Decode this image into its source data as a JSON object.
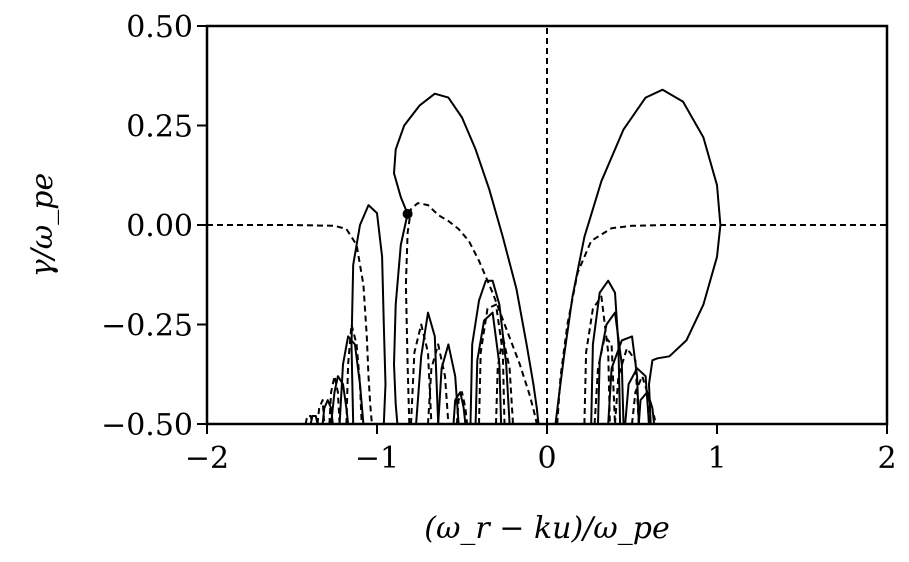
{
  "chart_data": {
    "type": "line",
    "title": "",
    "xlabel": "(ω_r − ku)/ω_pe",
    "ylabel": "γ/ω_pe",
    "xlim": [
      -2,
      2
    ],
    "ylim": [
      -0.5,
      0.5
    ],
    "xticks": [
      -2,
      -1,
      0,
      1,
      2
    ],
    "xtick_labels": [
      "−2",
      "−1",
      "0",
      "1",
      "2"
    ],
    "yticks": [
      0.5,
      0.25,
      0.0,
      -0.25,
      -0.5
    ],
    "ytick_labels": [
      "0.50",
      "0.25",
      "0.00",
      "−0.25",
      "−0.50"
    ],
    "grid": false,
    "legend": "none",
    "marker_point": {
      "x": -0.82,
      "y": 0.028
    },
    "series": [
      {
        "style": "solid",
        "color": "#000000",
        "segments": [
          {
            "x": [
              -0.82,
              -0.86,
              -0.9,
              -0.89,
              -0.84,
              -0.75,
              -0.66,
              -0.58,
              -0.5,
              -0.42,
              -0.34,
              -0.26,
              -0.18,
              -0.12,
              -0.08,
              -0.06,
              -0.05
            ],
            "y": [
              0.028,
              0.07,
              0.13,
              0.19,
              0.25,
              0.3,
              0.33,
              0.32,
              0.27,
              0.19,
              0.09,
              -0.03,
              -0.16,
              -0.3,
              -0.4,
              -0.46,
              -0.5
            ]
          },
          {
            "x": [
              0.05,
              0.07,
              0.1,
              0.15,
              0.22,
              0.32,
              0.45,
              0.58,
              0.68,
              0.8,
              0.92,
              1.0,
              1.02,
              1.0,
              0.92,
              0.82,
              0.72,
              0.65,
              0.62,
              0.6,
              0.61
            ],
            "y": [
              -0.5,
              -0.43,
              -0.33,
              -0.18,
              -0.03,
              0.11,
              0.24,
              0.32,
              0.34,
              0.31,
              0.22,
              0.1,
              0.0,
              -0.08,
              -0.2,
              -0.29,
              -0.33,
              -0.335,
              -0.34,
              -0.4,
              -0.5
            ]
          },
          {
            "x": [
              -0.82,
              -0.86,
              -0.89,
              -0.9,
              -0.89,
              -0.88
            ],
            "y": [
              0.028,
              -0.05,
              -0.2,
              -0.35,
              -0.45,
              -0.5
            ]
          },
          {
            "x": [
              -1.14,
              -1.15,
              -1.14,
              -1.1,
              -1.05,
              -1.0,
              -0.97,
              -0.96,
              -0.95,
              -0.96
            ],
            "y": [
              -0.5,
              -0.3,
              -0.1,
              0.0,
              0.05,
              0.03,
              -0.08,
              -0.25,
              -0.4,
              -0.5
            ]
          },
          {
            "x": [
              -1.22,
              -1.2,
              -1.17,
              -1.13,
              -1.1,
              -1.08
            ],
            "y": [
              -0.5,
              -0.35,
              -0.28,
              -0.3,
              -0.4,
              -0.5
            ]
          },
          {
            "x": [
              -1.27,
              -1.25,
              -1.23,
              -1.2,
              -1.18,
              -1.17
            ],
            "y": [
              -0.5,
              -0.42,
              -0.38,
              -0.4,
              -0.46,
              -0.5
            ]
          },
          {
            "x": [
              -1.32,
              -1.31,
              -1.29,
              -1.27,
              -1.26
            ],
            "y": [
              -0.5,
              -0.46,
              -0.44,
              -0.46,
              -0.5
            ]
          },
          {
            "x": [
              -1.39,
              -1.38,
              -1.36,
              -1.35
            ],
            "y": [
              -0.5,
              -0.48,
              -0.48,
              -0.5
            ]
          },
          {
            "x": [
              -0.77,
              -0.74,
              -0.7,
              -0.66,
              -0.64
            ],
            "y": [
              -0.5,
              -0.33,
              -0.22,
              -0.28,
              -0.5
            ]
          },
          {
            "x": [
              -0.64,
              -0.62,
              -0.58,
              -0.54,
              -0.52
            ],
            "y": [
              -0.5,
              -0.36,
              -0.3,
              -0.38,
              -0.5
            ]
          },
          {
            "x": [
              -0.55,
              -0.54,
              -0.51,
              -0.49,
              -0.48
            ],
            "y": [
              -0.5,
              -0.44,
              -0.42,
              -0.46,
              -0.5
            ]
          },
          {
            "x": [
              -0.45,
              -0.44,
              -0.4,
              -0.36,
              -0.32,
              -0.28,
              -0.24,
              -0.22
            ],
            "y": [
              -0.5,
              -0.3,
              -0.19,
              -0.14,
              -0.14,
              -0.2,
              -0.35,
              -0.5
            ]
          },
          {
            "x": [
              -0.42,
              -0.41,
              -0.37,
              -0.32,
              -0.28,
              -0.27
            ],
            "y": [
              -0.5,
              -0.34,
              -0.24,
              -0.22,
              -0.35,
              -0.5
            ]
          },
          {
            "x": [
              0.26,
              0.27,
              0.31,
              0.36,
              0.4,
              0.42,
              0.43
            ],
            "y": [
              -0.5,
              -0.3,
              -0.17,
              -0.14,
              -0.17,
              -0.3,
              -0.5
            ]
          },
          {
            "x": [
              0.3,
              0.31,
              0.35,
              0.4,
              0.44,
              0.45
            ],
            "y": [
              -0.5,
              -0.34,
              -0.25,
              -0.22,
              -0.35,
              -0.5
            ]
          },
          {
            "x": [
              0.36,
              0.38,
              0.44,
              0.5,
              0.53,
              0.54
            ],
            "y": [
              -0.5,
              -0.36,
              -0.29,
              -0.28,
              -0.38,
              -0.5
            ]
          },
          {
            "x": [
              0.46,
              0.48,
              0.53,
              0.58,
              0.6
            ],
            "y": [
              -0.5,
              -0.4,
              -0.36,
              -0.38,
              -0.5
            ]
          },
          {
            "x": [
              0.54,
              0.55,
              0.59,
              0.62,
              0.63
            ],
            "y": [
              -0.5,
              -0.44,
              -0.42,
              -0.46,
              -0.5
            ]
          }
        ]
      },
      {
        "style": "dashed",
        "color": "#000000",
        "segments": [
          {
            "x": [
              -2.0,
              -1.5,
              -1.25,
              -1.18,
              -1.12,
              -1.08,
              -1.06,
              -1.05,
              -1.04,
              -1.03
            ],
            "y": [
              0.0,
              0.0,
              -0.002,
              -0.01,
              -0.05,
              -0.15,
              -0.28,
              -0.38,
              -0.45,
              -0.5
            ]
          },
          {
            "x": [
              0.06,
              0.08,
              0.12,
              0.18,
              0.26,
              0.38,
              0.5,
              0.7,
              1.0,
              1.5,
              2.0
            ],
            "y": [
              -0.5,
              -0.38,
              -0.25,
              -0.12,
              -0.04,
              -0.008,
              -0.002,
              0.0,
              0.0,
              0.0,
              0.0
            ]
          },
          {
            "x": [
              -0.81,
              -0.82,
              -0.83,
              -0.82,
              -0.8,
              -0.76,
              -0.7,
              -0.64,
              -0.58,
              -0.52,
              -0.46,
              -0.4,
              -0.32,
              -0.24,
              -0.16,
              -0.1,
              -0.07,
              -0.06
            ],
            "y": [
              -0.5,
              -0.35,
              -0.15,
              -0.02,
              0.04,
              0.055,
              0.05,
              0.025,
              0.01,
              -0.01,
              -0.04,
              -0.09,
              -0.17,
              -0.26,
              -0.35,
              -0.43,
              -0.48,
              -0.5
            ]
          },
          {
            "x": [
              -1.18,
              -1.17,
              -1.15,
              -1.12,
              -1.1,
              -1.09
            ],
            "y": [
              -0.5,
              -0.35,
              -0.25,
              -0.3,
              -0.4,
              -0.5
            ]
          },
          {
            "x": [
              -1.28,
              -1.27,
              -1.25,
              -1.23,
              -1.22
            ],
            "y": [
              -0.5,
              -0.42,
              -0.38,
              -0.42,
              -0.5
            ]
          },
          {
            "x": [
              -1.35,
              -1.34,
              -1.32,
              -1.31
            ],
            "y": [
              -0.5,
              -0.46,
              -0.44,
              -0.5
            ]
          },
          {
            "x": [
              -1.42,
              -1.41,
              -1.39,
              -1.38
            ],
            "y": [
              -0.5,
              -0.48,
              -0.48,
              -0.5
            ]
          },
          {
            "x": [
              -0.8,
              -0.78,
              -0.74,
              -0.7,
              -0.68
            ],
            "y": [
              -0.5,
              -0.32,
              -0.25,
              -0.32,
              -0.5
            ]
          },
          {
            "x": [
              -0.7,
              -0.68,
              -0.64,
              -0.6,
              -0.58
            ],
            "y": [
              -0.5,
              -0.36,
              -0.3,
              -0.38,
              -0.5
            ]
          },
          {
            "x": [
              -0.53,
              -0.52,
              -0.5,
              -0.48,
              -0.47
            ],
            "y": [
              -0.5,
              -0.44,
              -0.42,
              -0.46,
              -0.5
            ]
          },
          {
            "x": [
              -0.4,
              -0.39,
              -0.35,
              -0.3,
              -0.26,
              -0.25
            ],
            "y": [
              -0.5,
              -0.32,
              -0.21,
              -0.2,
              -0.32,
              -0.5
            ]
          },
          {
            "x": [
              -0.3,
              -0.29,
              -0.26,
              -0.22,
              -0.2
            ],
            "y": [
              -0.5,
              -0.36,
              -0.28,
              -0.36,
              -0.5
            ]
          },
          {
            "x": [
              0.22,
              0.23,
              0.27,
              0.32,
              0.36,
              0.37
            ],
            "y": [
              -0.5,
              -0.32,
              -0.21,
              -0.18,
              -0.32,
              -0.5
            ]
          },
          {
            "x": [
              0.28,
              0.3,
              0.34,
              0.38,
              0.4
            ],
            "y": [
              -0.5,
              -0.36,
              -0.28,
              -0.3,
              -0.5
            ]
          },
          {
            "x": [
              0.4,
              0.42,
              0.47,
              0.52,
              0.54
            ],
            "y": [
              -0.5,
              -0.38,
              -0.31,
              -0.34,
              -0.5
            ]
          },
          {
            "x": [
              0.5,
              0.52,
              0.56,
              0.59,
              0.6
            ],
            "y": [
              -0.5,
              -0.42,
              -0.38,
              -0.42,
              -0.5
            ]
          },
          {
            "x": [
              0.6,
              0.61,
              0.63,
              0.64
            ],
            "y": [
              -0.5,
              -0.48,
              -0.48,
              -0.5
            ]
          },
          {
            "x": [
              0.0,
              0.0
            ],
            "y": [
              -0.5,
              0.5
            ]
          }
        ]
      }
    ]
  }
}
